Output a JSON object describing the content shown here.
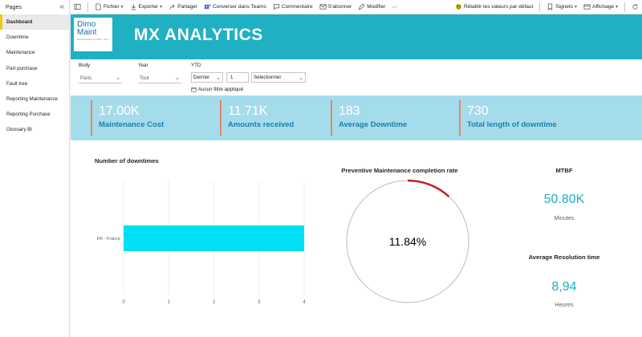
{
  "sidebar": {
    "title": "Pages",
    "collapse_icon": "double-chevron-left-icon",
    "items": [
      {
        "label": "Dashboard",
        "active": true
      },
      {
        "label": "Downtime"
      },
      {
        "label": "Maintenance"
      },
      {
        "label": "Part purchase"
      },
      {
        "label": "Fault tree"
      },
      {
        "label": "Reporting Maintenance"
      },
      {
        "label": "Reporting Purchase"
      },
      {
        "label": "Glossary BI"
      }
    ]
  },
  "toolbar": {
    "file": "Fichier",
    "export": "Exporter",
    "share": "Partager",
    "teams": "Converser dans Teams",
    "comment": "Commentaire",
    "subscribe": "S'abonner",
    "edit": "Modifier",
    "more": "⋯",
    "reset": "Rétablir les valeurs par défaut",
    "bookmarks": "Signets",
    "view": "Affichage"
  },
  "banner": {
    "logo_line1": "Dimo",
    "logo_line2": "Maint",
    "logo_tag": "MAINTENANCE & GMAO · MCS",
    "title": "MX ANALYTICS",
    "color": "#1fb0c3"
  },
  "filters": {
    "body_label": "Body",
    "body_value": "Paris",
    "year_label": "Year",
    "year_value": "Tout",
    "ytd_label": "YTD",
    "ytd_mode": "Dernier",
    "ytd_number": "1",
    "ytd_select": "Sélectionner",
    "no_filter": "Aucun filtre appliqué"
  },
  "kpis": [
    {
      "value": "17.00K",
      "label": "Maintenance Cost"
    },
    {
      "value": "11.71K",
      "label": "Amounts received"
    },
    {
      "value": "183",
      "label": "Average Downtime"
    },
    {
      "value": "730",
      "label": "Total length of downtime"
    }
  ],
  "chart_data": [
    {
      "type": "bar",
      "orientation": "horizontal",
      "title": "Number of downtimes",
      "categories": [
        "FR - France"
      ],
      "values": [
        4
      ],
      "xlim": [
        0,
        4
      ],
      "xticks": [
        "0",
        "1",
        "2",
        "3",
        "4"
      ],
      "grid": true,
      "color": "#00e0f5"
    },
    {
      "type": "pie",
      "title": "Preventive Maintenance completion rate",
      "value": 0.1184,
      "label": "11.84%",
      "color": "#cc1f1f"
    }
  ],
  "mtbf": {
    "title": "MTBF",
    "value": "50.80K",
    "unit": "Minutes"
  },
  "resolution": {
    "title": "Average Resolution time",
    "value": "8,94",
    "unit": "Heures"
  }
}
